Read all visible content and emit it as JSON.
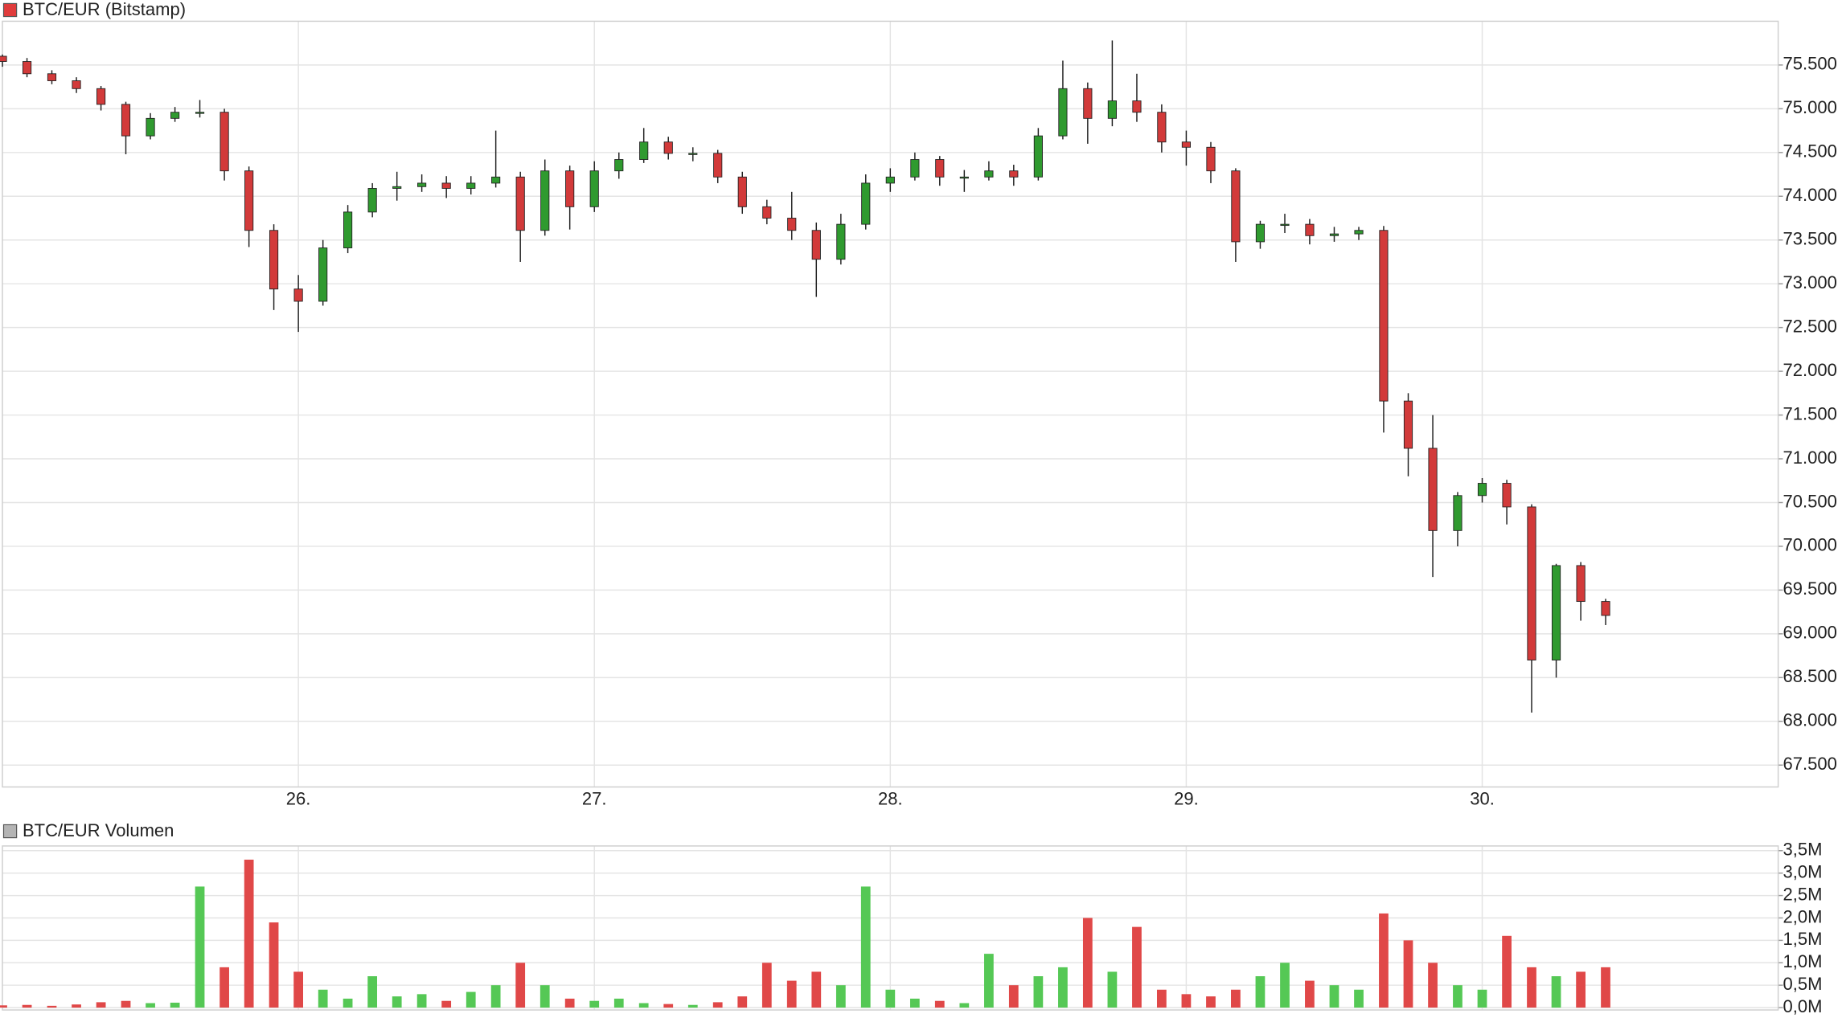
{
  "chart_data": [
    {
      "type": "candlestick",
      "title": "BTC/EUR (Bitstamp)",
      "title_marker_color": "#e03c3c",
      "x": [
        25,
        25.083,
        25.167,
        25.25,
        25.333,
        25.417,
        25.5,
        25.583,
        25.667,
        25.75,
        25.833,
        25.917,
        26,
        26.083,
        26.167,
        26.25,
        26.333,
        26.417,
        26.5,
        26.583,
        26.667,
        26.75,
        26.833,
        26.917,
        27,
        27.083,
        27.167,
        27.25,
        27.333,
        27.417,
        27.5,
        27.583,
        27.667,
        27.75,
        27.833,
        27.917,
        28,
        28.083,
        28.167,
        28.25,
        28.333,
        28.417,
        28.5,
        28.583,
        28.667,
        28.75,
        28.833,
        28.917,
        29,
        29.083,
        29.167,
        29.25,
        29.333,
        29.417,
        29.5,
        29.583,
        29.667,
        29.75,
        29.833,
        29.917,
        30,
        30.083,
        30.167,
        30.25,
        30.333,
        30.417
      ],
      "open": [
        75600,
        75540,
        75400,
        75320,
        75230,
        75050,
        74690,
        74890,
        74960,
        74960,
        74290,
        73610,
        72940,
        72800,
        73410,
        73820,
        74090,
        74110,
        74150,
        74090,
        74150,
        74220,
        73610,
        74290,
        73880,
        74290,
        74420,
        74620,
        74490,
        74490,
        74220,
        73880,
        73750,
        73610,
        73280,
        73680,
        74150,
        74220,
        74420,
        74220,
        74220,
        74290,
        74220,
        74690,
        75230,
        74890,
        75090,
        74960,
        74620,
        74560,
        74290,
        73480,
        73680,
        73680,
        73550,
        73570,
        73610,
        71660,
        71120,
        70180,
        70580,
        70720,
        70450,
        68700,
        69780,
        69370
      ],
      "high": [
        75620,
        75580,
        75440,
        75360,
        75260,
        75080,
        74950,
        75020,
        75100,
        75000,
        74340,
        73680,
        73100,
        73500,
        73900,
        74150,
        74280,
        74250,
        74230,
        74230,
        74750,
        74280,
        74420,
        74350,
        74400,
        74500,
        74780,
        74680,
        74560,
        74530,
        74280,
        73960,
        74050,
        73700,
        73800,
        74250,
        74320,
        74500,
        74460,
        74300,
        74400,
        74360,
        74780,
        75550,
        75300,
        75780,
        75400,
        75050,
        74750,
        74620,
        74320,
        73720,
        73800,
        73740,
        73650,
        73650,
        73660,
        71750,
        71500,
        70620,
        70780,
        70760,
        70480,
        69800,
        69820,
        69400
      ],
      "low": [
        75480,
        75360,
        75280,
        75180,
        74980,
        74480,
        74650,
        74850,
        74900,
        74180,
        73420,
        72700,
        72450,
        72750,
        73350,
        73760,
        73950,
        74050,
        73980,
        74020,
        74100,
        73250,
        73550,
        73620,
        73820,
        74200,
        74380,
        74420,
        74400,
        74150,
        73800,
        73680,
        73500,
        72850,
        73220,
        73620,
        74050,
        74180,
        74120,
        74050,
        74180,
        74120,
        74180,
        74650,
        74600,
        74800,
        74850,
        74500,
        74350,
        74150,
        73250,
        73400,
        73580,
        73450,
        73480,
        73500,
        71300,
        70800,
        69650,
        70000,
        70500,
        70250,
        68100,
        68500,
        69150,
        69100
      ],
      "close": [
        75540,
        75400,
        75320,
        75230,
        75050,
        74690,
        74890,
        74960,
        74960,
        74290,
        73610,
        72940,
        72800,
        73410,
        73820,
        74090,
        74110,
        74150,
        74090,
        74150,
        74220,
        73610,
        74290,
        73880,
        74290,
        74420,
        74620,
        74490,
        74490,
        74220,
        73880,
        73750,
        73610,
        73280,
        73680,
        74150,
        74220,
        74420,
        74220,
        74220,
        74290,
        74220,
        74690,
        75230,
        74890,
        75090,
        74960,
        74620,
        74560,
        74290,
        73480,
        73680,
        73680,
        73550,
        73570,
        73610,
        71660,
        71120,
        70180,
        70580,
        70720,
        70450,
        68700,
        69780,
        69370,
        69210
      ],
      "xlim": [
        25,
        31
      ],
      "ylim": [
        67250,
        76000
      ],
      "xticks": [
        {
          "value": 26,
          "label": "26."
        },
        {
          "value": 27,
          "label": "27."
        },
        {
          "value": 28,
          "label": "28."
        },
        {
          "value": 29,
          "label": "29."
        },
        {
          "value": 30,
          "label": "30."
        }
      ],
      "yticks": [
        {
          "value": 67500,
          "label": "67.500"
        },
        {
          "value": 68000,
          "label": "68.000"
        },
        {
          "value": 68500,
          "label": "68.500"
        },
        {
          "value": 69000,
          "label": "69.000"
        },
        {
          "value": 69500,
          "label": "69.500"
        },
        {
          "value": 70000,
          "label": "70.000"
        },
        {
          "value": 70500,
          "label": "70.500"
        },
        {
          "value": 71000,
          "label": "71.000"
        },
        {
          "value": 71500,
          "label": "71.500"
        },
        {
          "value": 72000,
          "label": "72.000"
        },
        {
          "value": 72500,
          "label": "72.500"
        },
        {
          "value": 73000,
          "label": "73.000"
        },
        {
          "value": 73500,
          "label": "73.500"
        },
        {
          "value": 74000,
          "label": "74.000"
        },
        {
          "value": 74500,
          "label": "74.500"
        },
        {
          "value": 75000,
          "label": "75.000"
        },
        {
          "value": 75500,
          "label": "75.500"
        }
      ],
      "grid": true,
      "up_color": "#2f9a2f",
      "down_color": "#d23a3a",
      "wick_color": "#222222"
    },
    {
      "type": "bar",
      "title": "BTC/EUR Volumen",
      "title_marker_color": "#b4b4b4",
      "x": [
        25,
        25.083,
        25.167,
        25.25,
        25.333,
        25.417,
        25.5,
        25.583,
        25.667,
        25.75,
        25.833,
        25.917,
        26,
        26.083,
        26.167,
        26.25,
        26.333,
        26.417,
        26.5,
        26.583,
        26.667,
        26.75,
        26.833,
        26.917,
        27,
        27.083,
        27.167,
        27.25,
        27.333,
        27.417,
        27.5,
        27.583,
        27.667,
        27.75,
        27.833,
        27.917,
        28,
        28.083,
        28.167,
        28.25,
        28.333,
        28.417,
        28.5,
        28.583,
        28.667,
        28.75,
        28.833,
        28.917,
        29,
        29.083,
        29.167,
        29.25,
        29.333,
        29.417,
        29.5,
        29.583,
        29.667,
        29.75,
        29.833,
        29.917,
        30,
        30.083,
        30.167,
        30.25,
        30.333,
        30.417
      ],
      "values": [
        50000,
        60000,
        40000,
        70000,
        120000,
        150000,
        100000,
        110000,
        2700000,
        900000,
        3300000,
        1900000,
        800000,
        400000,
        200000,
        700000,
        250000,
        300000,
        150000,
        350000,
        500000,
        1000000,
        500000,
        200000,
        150000,
        200000,
        100000,
        80000,
        60000,
        120000,
        250000,
        1000000,
        600000,
        800000,
        500000,
        2700000,
        400000,
        200000,
        150000,
        100000,
        1200000,
        500000,
        700000,
        900000,
        2000000,
        800000,
        1800000,
        400000,
        300000,
        250000,
        400000,
        700000,
        1000000,
        600000,
        500000,
        400000,
        2100000,
        1500000,
        1000000,
        500000,
        400000,
        1600000,
        900000,
        700000,
        800000,
        900000
      ],
      "xlim": [
        25,
        31
      ],
      "ylim": [
        0,
        3500000
      ],
      "xticks": [
        26,
        27,
        28,
        29,
        30
      ],
      "yticks": [
        {
          "value": 0,
          "label": "0,0M"
        },
        {
          "value": 500000,
          "label": "0,5M"
        },
        {
          "value": 1000000,
          "label": "1,0M"
        },
        {
          "value": 1500000,
          "label": "1,5M"
        },
        {
          "value": 2000000,
          "label": "2,0M"
        },
        {
          "value": 2500000,
          "label": "2,5M"
        },
        {
          "value": 3000000,
          "label": "3,0M"
        },
        {
          "value": 3500000,
          "label": "3,5M"
        }
      ],
      "grid": true,
      "up_color": "#55c855",
      "down_color": "#e04848"
    }
  ]
}
